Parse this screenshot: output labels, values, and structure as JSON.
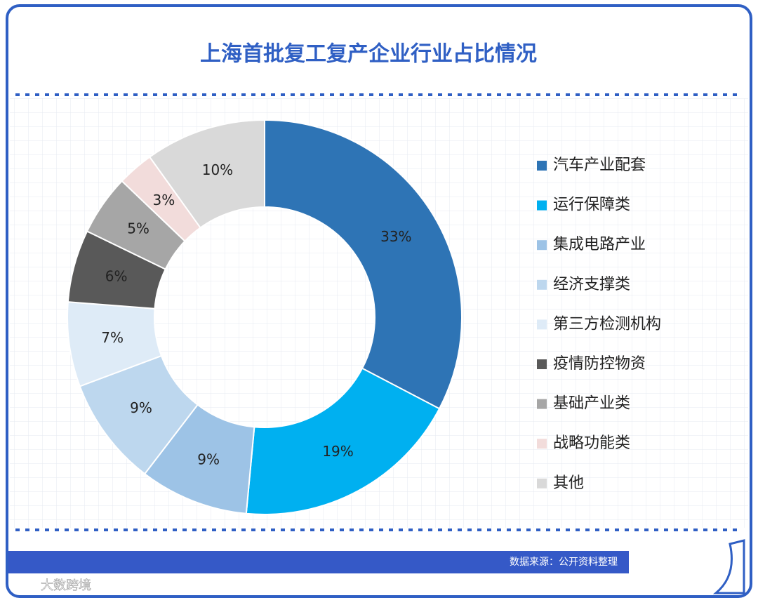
{
  "chart_data": {
    "type": "donut",
    "title": "上海首批复工复产企业行业占比情况",
    "categories": [
      "汽车产业配套",
      "运行保障类",
      "集成电路产业",
      "经济支撑类",
      "第三方检测机构",
      "疫情防控物资",
      "基础产业类",
      "战略功能类",
      "其他"
    ],
    "values": [
      33,
      19,
      9,
      9,
      7,
      6,
      5,
      3,
      10
    ],
    "value_labels": [
      "33%",
      "19%",
      "9%",
      "9%",
      "7%",
      "6%",
      "5%",
      "3%",
      "10%"
    ],
    "colors": [
      "#2e74b5",
      "#00b0f0",
      "#9dc3e6",
      "#bdd7ee",
      "#deebf7",
      "#595959",
      "#a6a6a6",
      "#f2dcdb",
      "#d9d9d9"
    ],
    "legend": "right",
    "source": "数据来源：公开资料整理",
    "watermark": "大数跨境"
  }
}
